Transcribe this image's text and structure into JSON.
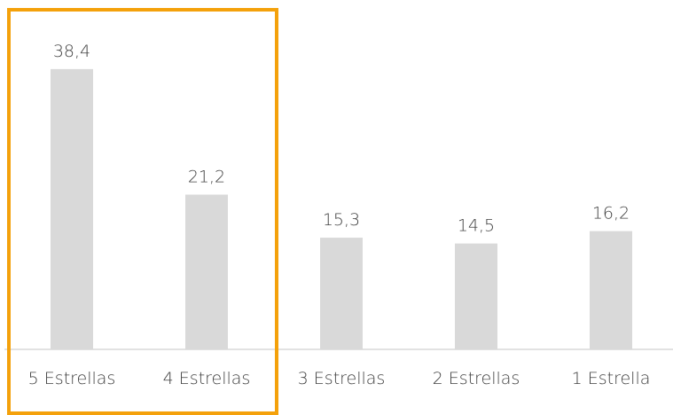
{
  "chart_data": {
    "type": "bar",
    "categories": [
      "5 Estrellas",
      "4 Estrellas",
      "3 Estrellas",
      "2 Estrellas",
      "1 Estrella"
    ],
    "values": [
      38.4,
      21.2,
      15.3,
      14.5,
      16.2
    ],
    "value_labels": [
      "38,4",
      "21,2",
      "15,3",
      "14,5",
      "16,2"
    ],
    "title": "",
    "xlabel": "",
    "ylabel": "",
    "ylim": [
      0,
      43
    ],
    "grid": false,
    "bar_color": "#d9d9d9",
    "axis_color": "#d9d9d9",
    "highlight": {
      "categories": [
        "5 Estrellas",
        "4 Estrellas"
      ],
      "color": "#f4a10b"
    }
  }
}
